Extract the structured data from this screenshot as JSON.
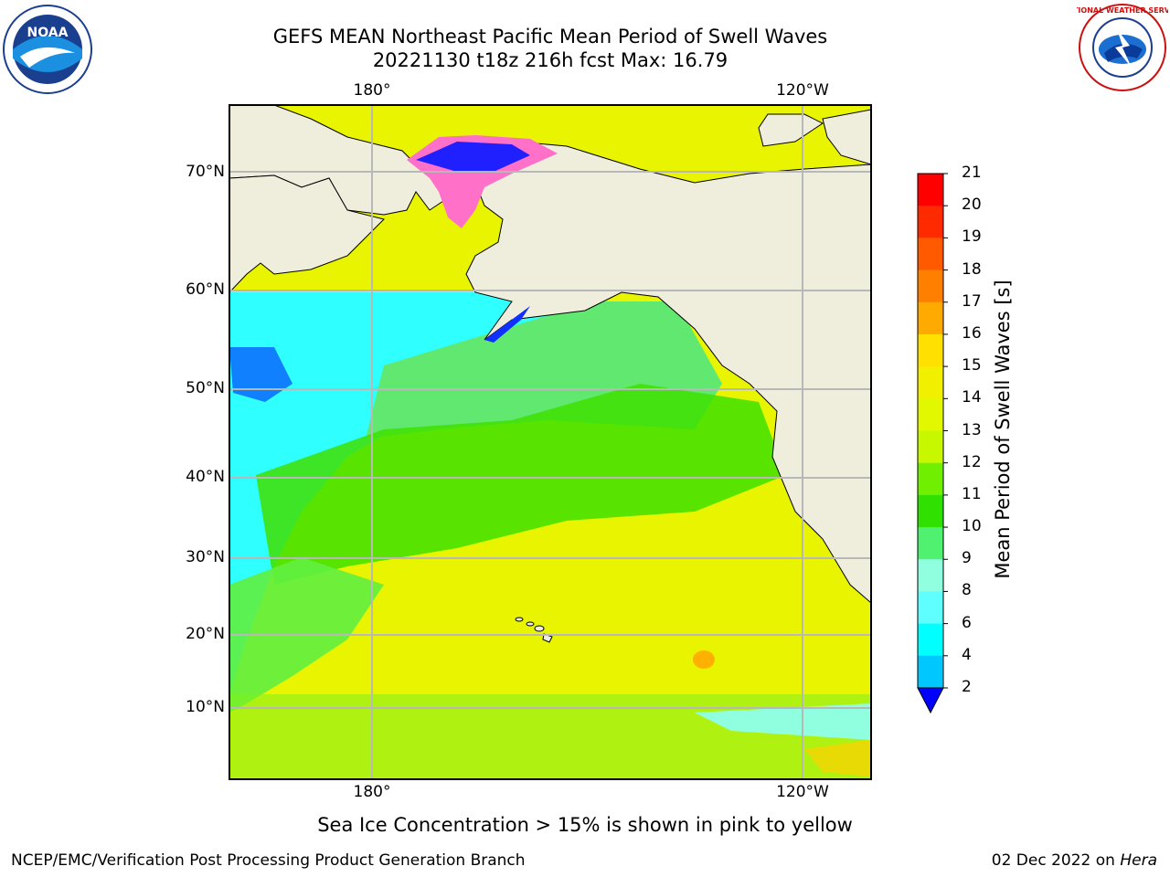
{
  "title_line1": "GEFS MEAN Northeast Pacific Mean Period of Swell Waves",
  "title_line2": "20221130 t18z 216h fcst   Max: 16.79",
  "lon_labels": [
    "180°",
    "120°W"
  ],
  "lat_labels": [
    "70°N",
    "60°N",
    "50°N",
    "40°N",
    "30°N",
    "20°N",
    "10°N"
  ],
  "colorbar": {
    "label": "Mean Period of Swell Waves [s]",
    "ticks": [
      "21",
      "20",
      "19",
      "18",
      "17",
      "16",
      "15",
      "14",
      "13",
      "12",
      "11",
      "10",
      "9",
      "8",
      "6",
      "4",
      "2"
    ],
    "colors": [
      "#ff0000",
      "#ff2a00",
      "#ff5a00",
      "#ff8000",
      "#ffaa00",
      "#ffe000",
      "#f0f000",
      "#e2f800",
      "#c8f800",
      "#70f000",
      "#30e000",
      "#50f070",
      "#90ffe0",
      "#60ffff",
      "#00ffff",
      "#00c8ff",
      "#0070ff",
      "#0000ff"
    ]
  },
  "footer_note": "Sea Ice Concentration > 15% is shown in pink to yellow",
  "footer_left": "NCEP/EMC/Verification Post Processing Product Generation Branch",
  "footer_right_text": "02 Dec 2022 on",
  "footer_right_host": "Hera",
  "logos": {
    "left": "NOAA",
    "right": "NATIONAL WEATHER SERVICE"
  }
}
